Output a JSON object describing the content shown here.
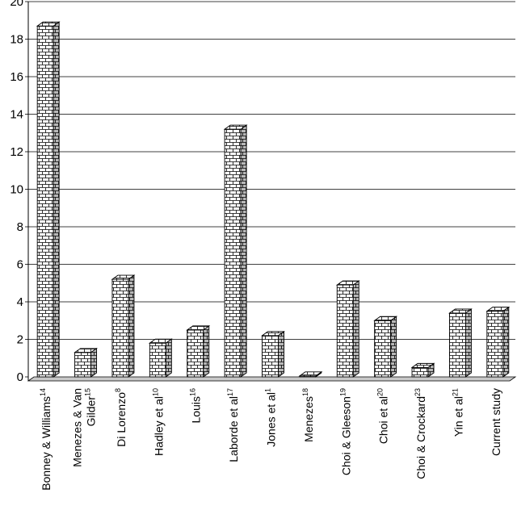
{
  "chart_data": {
    "type": "bar",
    "title": "",
    "xlabel": "",
    "ylabel": "",
    "ylim": [
      0,
      20
    ],
    "yticks": [
      0,
      2,
      4,
      6,
      8,
      10,
      12,
      14,
      16,
      18,
      20
    ],
    "grid": true,
    "style": "3d bars with brick pattern",
    "categories": [
      {
        "text": "Bonney & Williams",
        "sup": "14"
      },
      {
        "text": "Menezes & Van Gilder",
        "sup": "15"
      },
      {
        "text": "Di Lorenzo",
        "sup": "8"
      },
      {
        "text": "Hadley et al",
        "sup": "10"
      },
      {
        "text": "Louis",
        "sup": "16"
      },
      {
        "text": "Laborde et al",
        "sup": "17"
      },
      {
        "text": "Jones et al",
        "sup": "1"
      },
      {
        "text": "Menezes",
        "sup": "18"
      },
      {
        "text": "Choi & Gleeson",
        "sup": "19"
      },
      {
        "text": "Choi et al",
        "sup": "20"
      },
      {
        "text": "Choi & Crockard",
        "sup": "23"
      },
      {
        "text": "Yin et al",
        "sup": "21"
      },
      {
        "text": "Current study",
        "sup": ""
      }
    ],
    "values": [
      18.7,
      1.3,
      5.2,
      1.8,
      2.5,
      13.2,
      2.2,
      0.05,
      4.9,
      3.0,
      0.5,
      3.4,
      3.5
    ]
  }
}
